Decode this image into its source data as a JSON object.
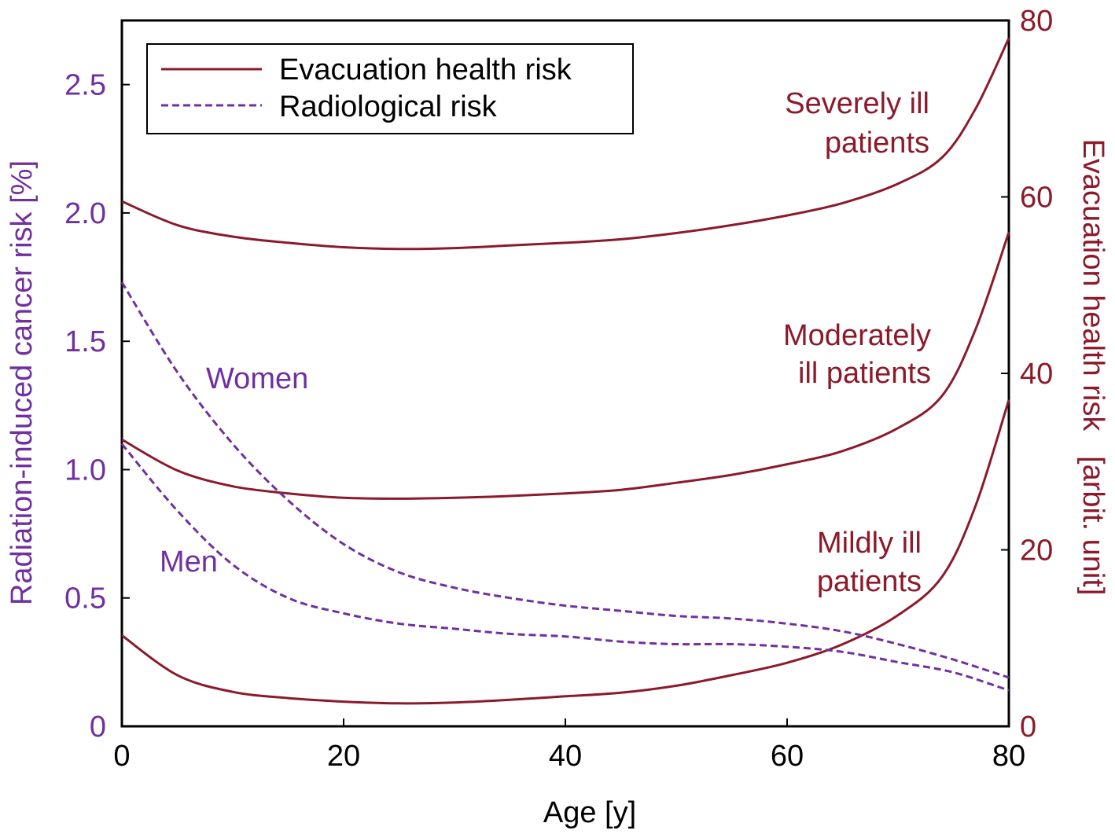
{
  "chart_data": {
    "type": "line",
    "title": "",
    "xlabel": "Age [y]",
    "ylabel_left": "Radiation-induced cancer risk [%]",
    "ylabel_right": "Evacuation health risk   [arbit. unit]",
    "xlim": [
      0,
      80
    ],
    "ylim_left": [
      0,
      2.75
    ],
    "ylim_right": [
      0,
      80
    ],
    "xticks": [
      "0",
      "20",
      "40",
      "60",
      "80"
    ],
    "yticks_left": [
      "0",
      "0.5",
      "1.0",
      "1.5",
      "2.0",
      "2.5"
    ],
    "yticks_right": [
      "0",
      "20",
      "40",
      "60",
      "80"
    ],
    "grid": false,
    "legend": {
      "position": "top-left",
      "entries": [
        {
          "label": "Evacuation health risk",
          "style": "solid",
          "color": "#8B1A2B"
        },
        {
          "label": "Radiological risk",
          "style": "dashed",
          "color": "#7030A0"
        }
      ]
    },
    "colors": {
      "evacuation": "#8B1A2B",
      "radiological": "#7030A0"
    },
    "series": [
      {
        "name": "Severely ill patients",
        "axis": "right",
        "style": "solid",
        "x": [
          0,
          5,
          10,
          15,
          20,
          25,
          30,
          35,
          40,
          45,
          50,
          55,
          60,
          65,
          70,
          74,
          77,
          80
        ],
        "values": [
          59.5,
          56.8,
          55.5,
          54.8,
          54.3,
          54.1,
          54.2,
          54.5,
          54.8,
          55.2,
          55.9,
          56.8,
          57.9,
          59.3,
          61.5,
          64.5,
          70.0,
          78.0
        ]
      },
      {
        "name": "Moderately ill patients",
        "axis": "right",
        "style": "solid",
        "x": [
          0,
          5,
          10,
          15,
          20,
          25,
          30,
          35,
          40,
          45,
          50,
          55,
          60,
          65,
          70,
          74,
          77,
          80
        ],
        "values": [
          32.5,
          29.0,
          27.2,
          26.4,
          25.9,
          25.8,
          25.9,
          26.1,
          26.4,
          26.8,
          27.6,
          28.5,
          29.7,
          31.2,
          33.8,
          37.5,
          45.0,
          56.0
        ]
      },
      {
        "name": "Mildly ill patients",
        "axis": "right",
        "style": "solid",
        "x": [
          0,
          5,
          10,
          15,
          20,
          25,
          30,
          35,
          40,
          45,
          50,
          55,
          60,
          65,
          70,
          74,
          77,
          80
        ],
        "values": [
          10.3,
          5.8,
          3.9,
          3.2,
          2.8,
          2.6,
          2.7,
          3.0,
          3.4,
          3.8,
          4.6,
          5.8,
          7.2,
          9.3,
          12.6,
          17.0,
          25.0,
          37.0
        ]
      },
      {
        "name": "Women",
        "axis": "left",
        "style": "dashed",
        "x": [
          0,
          5,
          10,
          15,
          20,
          25,
          30,
          35,
          40,
          45,
          50,
          55,
          60,
          65,
          70,
          75,
          80
        ],
        "values": [
          1.73,
          1.38,
          1.1,
          0.88,
          0.71,
          0.6,
          0.54,
          0.5,
          0.47,
          0.45,
          0.43,
          0.42,
          0.4,
          0.37,
          0.32,
          0.26,
          0.19
        ]
      },
      {
        "name": "Men",
        "axis": "left",
        "style": "dashed",
        "x": [
          0,
          5,
          10,
          15,
          20,
          25,
          30,
          35,
          40,
          45,
          50,
          55,
          60,
          65,
          70,
          75,
          80
        ],
        "values": [
          1.1,
          0.84,
          0.63,
          0.5,
          0.44,
          0.4,
          0.38,
          0.36,
          0.35,
          0.33,
          0.32,
          0.32,
          0.31,
          0.29,
          0.25,
          0.21,
          0.14
        ]
      }
    ],
    "annotations": {
      "severely": [
        "Severely ill",
        "patients"
      ],
      "moderately": [
        "Moderately",
        "ill patients"
      ],
      "mildly": [
        "Mildly ill",
        "patients"
      ],
      "women": "Women",
      "men": "Men"
    }
  }
}
